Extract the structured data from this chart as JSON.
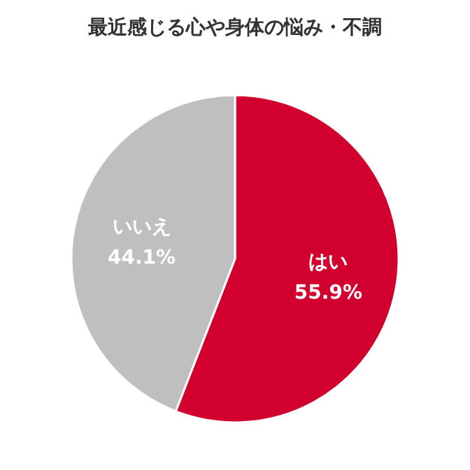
{
  "chart_data": {
    "type": "pie",
    "title": "最近感じる心や身体の悩み・不調",
    "categories": [
      "はい",
      "いいえ"
    ],
    "values": [
      55.9,
      44.1
    ],
    "colors": [
      "#d1002f",
      "#bfbfbf"
    ],
    "value_labels": [
      "55.9%",
      "44.1%"
    ]
  }
}
